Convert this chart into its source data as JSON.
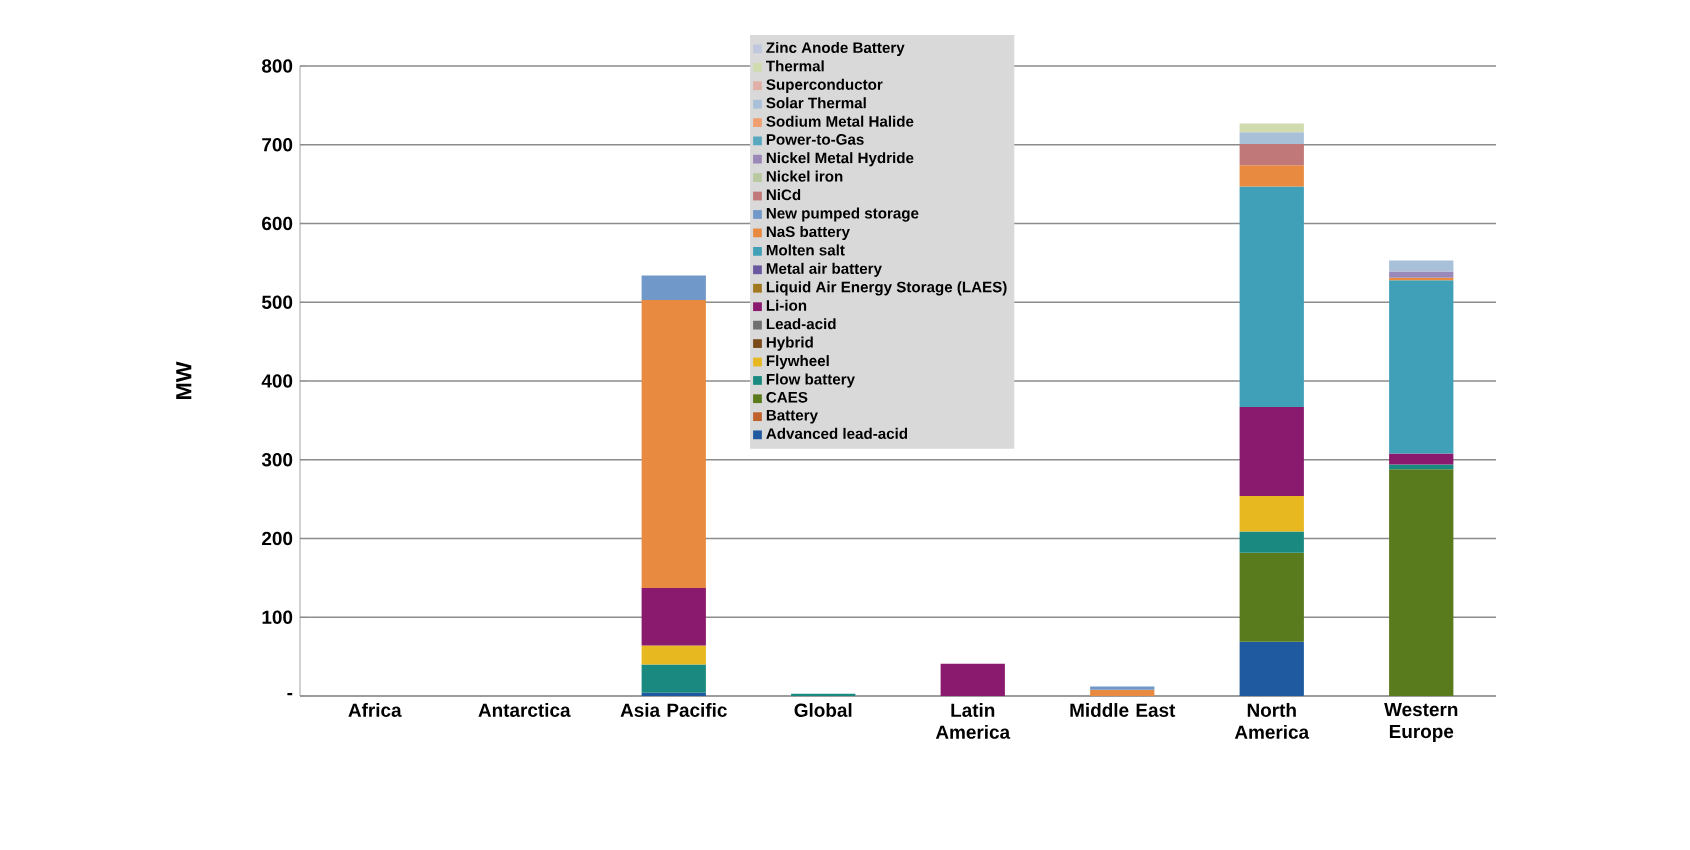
{
  "chart_data": {
    "type": "bar",
    "stacked": true,
    "ylabel": "MW",
    "categories": [
      "Africa",
      "Antarctica",
      "Asia Pacific",
      "Global",
      "Latin America",
      "Middle East",
      "North America",
      "Western Europe"
    ],
    "ylim": [
      0,
      800
    ],
    "yticks": [
      {
        "value": 0,
        "label": "-"
      },
      100,
      200,
      300,
      400,
      500,
      600,
      700,
      800
    ],
    "grid": "y",
    "legend": "top",
    "series": [
      {
        "name": "Advanced lead-acid",
        "color": "#1f5aa0",
        "values": [
          null,
          null,
          4,
          null,
          null,
          null,
          69,
          null
        ]
      },
      {
        "name": "Battery",
        "color": "#c0602a",
        "values": [
          null,
          null,
          null,
          null,
          null,
          null,
          null,
          null
        ]
      },
      {
        "name": "CAES",
        "color": "#5a7a1e",
        "values": [
          null,
          null,
          null,
          null,
          null,
          null,
          113,
          288
        ]
      },
      {
        "name": "Flow battery",
        "color": "#1a8a80",
        "values": [
          null,
          null,
          36,
          3,
          null,
          null,
          27,
          6
        ]
      },
      {
        "name": "Flywheel",
        "color": "#e8b820",
        "values": [
          null,
          null,
          24,
          null,
          null,
          null,
          45,
          null
        ]
      },
      {
        "name": "Hybrid",
        "color": "#7a4a1a",
        "values": [
          null,
          null,
          null,
          null,
          null,
          null,
          null,
          null
        ]
      },
      {
        "name": "Lead-acid",
        "color": "#707070",
        "values": [
          null,
          null,
          null,
          null,
          null,
          null,
          null,
          null
        ]
      },
      {
        "name": "Li-ion",
        "color": "#8a1a6e",
        "values": [
          null,
          null,
          73,
          null,
          41,
          null,
          113,
          14
        ]
      },
      {
        "name": "Liquid Air Energy Storage (LAES)",
        "color": "#a07820",
        "values": [
          null,
          null,
          null,
          null,
          null,
          null,
          null,
          null
        ]
      },
      {
        "name": "Metal air battery",
        "color": "#6a58a0",
        "values": [
          null,
          null,
          null,
          null,
          null,
          null,
          null,
          null
        ]
      },
      {
        "name": "Molten salt",
        "color": "#40a0b8",
        "values": [
          null,
          null,
          null,
          null,
          null,
          null,
          280,
          220
        ]
      },
      {
        "name": "NaS battery",
        "color": "#e88a40",
        "values": [
          null,
          null,
          366,
          null,
          null,
          8,
          27,
          3
        ]
      },
      {
        "name": "New pumped storage",
        "color": "#7098c8",
        "values": [
          null,
          null,
          31,
          null,
          null,
          4,
          null,
          null
        ]
      },
      {
        "name": "NiCd",
        "color": "#c07878",
        "values": [
          null,
          null,
          null,
          null,
          null,
          null,
          27,
          null
        ]
      },
      {
        "name": "Nickel iron",
        "color": "#b8c8a0",
        "values": [
          null,
          null,
          null,
          null,
          null,
          null,
          null,
          null
        ]
      },
      {
        "name": "Nickel Metal Hydride",
        "color": "#9a88b8",
        "values": [
          null,
          null,
          null,
          null,
          null,
          null,
          null,
          8
        ]
      },
      {
        "name": "Power-to-Gas",
        "color": "#58a8c0",
        "values": [
          null,
          null,
          null,
          null,
          null,
          null,
          null,
          null
        ]
      },
      {
        "name": "Sodium Metal Halide",
        "color": "#f0a070",
        "values": [
          null,
          null,
          null,
          null,
          null,
          null,
          null,
          null
        ]
      },
      {
        "name": "Solar Thermal",
        "color": "#a8c0d8",
        "values": [
          null,
          null,
          null,
          null,
          null,
          null,
          15,
          14
        ]
      },
      {
        "name": "Superconductor",
        "color": "#e0b0a8",
        "values": [
          null,
          null,
          null,
          null,
          null,
          null,
          null,
          null
        ]
      },
      {
        "name": "Thermal",
        "color": "#d0dcb0",
        "values": [
          null,
          null,
          null,
          null,
          null,
          null,
          11,
          null
        ]
      },
      {
        "name": "Zinc Anode Battery",
        "color": "#c0c8e0",
        "values": [
          null,
          null,
          null,
          null,
          null,
          null,
          null,
          null
        ]
      }
    ]
  }
}
